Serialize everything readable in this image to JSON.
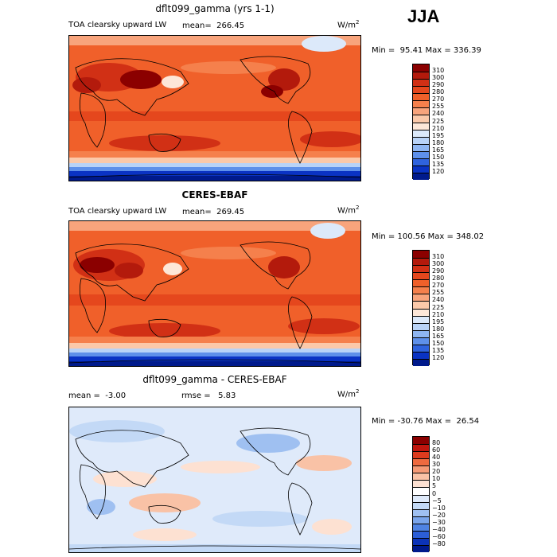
{
  "season": "JJA",
  "panels": [
    {
      "title": "dflt099_gamma (yrs 1-1)",
      "title_bold": false,
      "variable": "TOA clearsky upward LW",
      "stat_left": "mean=  266.45",
      "stat_right": "",
      "units_base": "W/m",
      "units_exp": "2",
      "minmax": "Min =  95.41 Max = 336.39",
      "colorbar_levels": [
        "310",
        "300",
        "290",
        "280",
        "270",
        "255",
        "240",
        "225",
        "210",
        "195",
        "180",
        "165",
        "150",
        "135",
        "120"
      ]
    },
    {
      "title": "CERES-EBAF",
      "title_bold": true,
      "variable": "TOA clearsky upward LW",
      "stat_left": "mean=  269.45",
      "stat_right": "",
      "units_base": "W/m",
      "units_exp": "2",
      "minmax": "Min = 100.56 Max = 348.02",
      "colorbar_levels": [
        "310",
        "300",
        "290",
        "280",
        "270",
        "255",
        "240",
        "225",
        "210",
        "195",
        "180",
        "165",
        "150",
        "135",
        "120"
      ]
    },
    {
      "title": "dflt099_gamma - CERES-EBAF",
      "title_bold": false,
      "variable": "",
      "stat_left": "mean =  -3.00",
      "stat_right": "rmse =   5.83",
      "units_base": "W/m",
      "units_exp": "2",
      "minmax": "Min = -30.76 Max =  26.54",
      "colorbar_levels": [
        "80",
        "60",
        "40",
        "30",
        "20",
        "10",
        "5",
        "0",
        "−5",
        "−10",
        "−20",
        "−30",
        "−40",
        "−60",
        "−80"
      ]
    }
  ],
  "colors": {
    "abs_scale": [
      "#8b0000",
      "#b31a0c",
      "#d13015",
      "#e5471d",
      "#f0602a",
      "#f5804c",
      "#f8a47c",
      "#fbc9aa",
      "#fde7d8",
      "#dce9fa",
      "#b9d3f7",
      "#8fb6f2",
      "#5e90ea",
      "#2f63de",
      "#0a33c4",
      "#001a8c"
    ],
    "diff_scale": [
      "#8b0000",
      "#c0160e",
      "#de3b1e",
      "#ef6a3f",
      "#f59a76",
      "#f9c2a6",
      "#fde1d2",
      "#ffffff",
      "#dfeafa",
      "#c3d9f6",
      "#9fc0f1",
      "#7aa5eb",
      "#4f83e3",
      "#2c5ed7",
      "#0c33b8",
      "#001a8c"
    ]
  }
}
